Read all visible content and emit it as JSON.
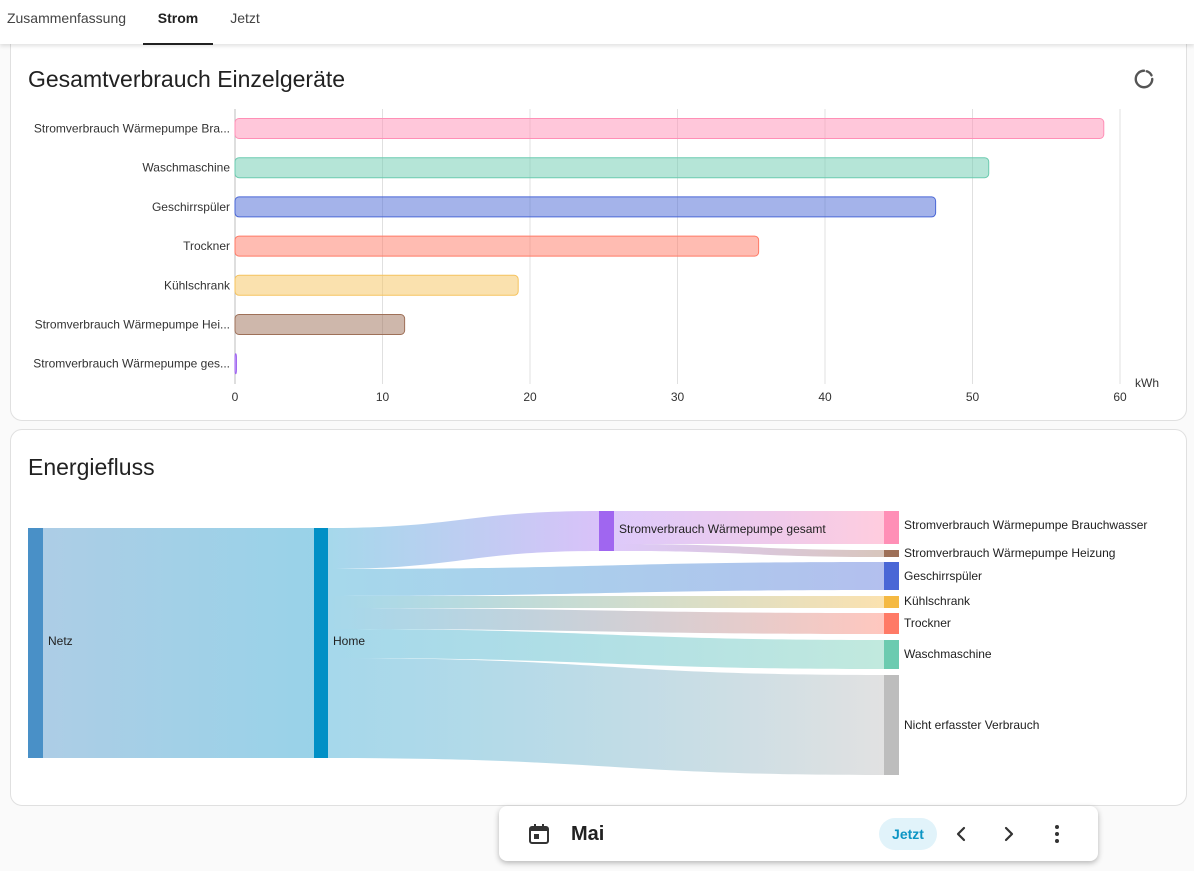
{
  "tabs": [
    {
      "label": "Zusammenfassung",
      "active": false
    },
    {
      "label": "Strom",
      "active": true
    },
    {
      "label": "Jetzt",
      "active": false
    }
  ],
  "consumption_card": {
    "title": "Gesamtverbrauch Einzelgeräte",
    "refresh_icon": "refresh-icon"
  },
  "chart_data": {
    "type": "bar",
    "orientation": "horizontal",
    "title": "Gesamtverbrauch Einzelgeräte",
    "categories": [
      "Stromverbrauch Wärmepumpe Bra...",
      "Waschmaschine",
      "Geschirrspüler",
      "Trockner",
      "Kühlschrank",
      "Stromverbrauch Wärmepumpe Hei...",
      "Stromverbrauch Wärmepumpe ges..."
    ],
    "values": [
      58.9,
      51.1,
      47.5,
      35.5,
      19.2,
      11.5,
      0.1
    ],
    "colors": [
      "#ff8fb6",
      "#6ccbb0",
      "#4a67d6",
      "#ff7a66",
      "#f5c35e",
      "#9e7058",
      "#a066f0"
    ],
    "xlim": [
      0,
      60
    ],
    "xticks": [
      "0",
      "10",
      "20",
      "30",
      "40",
      "50",
      "60"
    ],
    "unit": "kWh",
    "grid": true
  },
  "flow_card": {
    "title": "Energiefluss",
    "nodes": {
      "netz": "Netz",
      "home": "Home",
      "wp_gesamt": "Stromverbrauch Wärmepumpe gesamt",
      "wp_brauch": "Stromverbrauch Wärmepumpe Brauchwasser",
      "wp_heiz": "Stromverbrauch Wärmepumpe Heizung",
      "geschirr": "Geschirrspüler",
      "kuehl": "Kühlschrank",
      "trockner": "Trockner",
      "wasch": "Waschmaschine",
      "nicht_erfasst": "Nicht erfasster Verbrauch"
    },
    "colors": {
      "netz": "#4990c7",
      "home": "#0090c6",
      "wp_gesamt": "#a066f0",
      "wp_brauch": "#ff8fb6",
      "wp_heiz": "#9e7058",
      "geschirr": "#4a67d6",
      "kuehl": "#f5b942",
      "trockner": "#ff7a66",
      "wasch": "#6ccbb0",
      "nicht_erfasst": "#bdbdbd"
    }
  },
  "date_bar": {
    "calendar_icon": "calendar-icon",
    "period": "Mai",
    "now_label": "Jetzt",
    "prev_icon": "chevron-left-icon",
    "next_icon": "chevron-right-icon",
    "more_icon": "more-vertical-icon"
  }
}
